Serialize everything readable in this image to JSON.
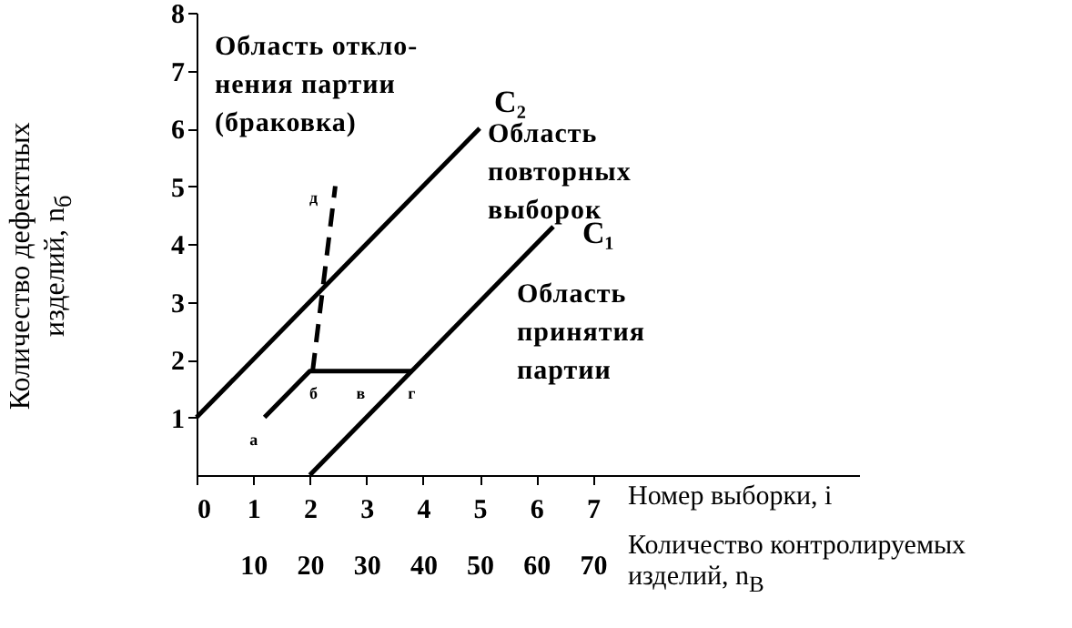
{
  "chart_data": {
    "type": "line",
    "xlabel": "Номер выборки, i",
    "x2label": "Количество контролируемых изделий, n$_{В}$",
    "ylabel": "Количество дефектных изделий, n$_{б}$",
    "xlim": [
      0,
      11.7
    ],
    "xticks": [
      0,
      1,
      2,
      3,
      4,
      5,
      6,
      7
    ],
    "ylim": [
      0,
      8
    ],
    "yticks": [
      1,
      2,
      3,
      4,
      5,
      6,
      7,
      8
    ],
    "x2lim": [
      0,
      117
    ],
    "x2ticks": [
      10,
      20,
      30,
      40,
      50,
      60,
      70
    ],
    "series": [
      {
        "name": "C₂",
        "color": "#000000",
        "x": [
          0,
          5
        ],
        "values": [
          1,
          6
        ]
      },
      {
        "name": "C₁",
        "color": "#000000",
        "x": [
          2,
          6.3
        ],
        "values": [
          0,
          4.3
        ]
      },
      {
        "color": "#000000",
        "x": [
          1.2,
          2,
          3.8
        ],
        "values": [
          1,
          1.8,
          1.8
        ]
      },
      {
        "color": "#000000",
        "line_style": "dashed",
        "x": [
          2.05,
          2.45
        ],
        "values": [
          1.8,
          5
        ]
      }
    ],
    "annotations": [
      "Область откло-нения партии (браковка)",
      "Область повторных выборок",
      "Область принятия партии",
      {
        "text": "а",
        "x": 1.2,
        "y": 1
      },
      {
        "text": "б",
        "x": 2,
        "y": 1.8
      },
      {
        "text": "в",
        "x": 2.9,
        "y": 1.8
      },
      {
        "text": "г",
        "x": 3.8,
        "y": 1.8
      },
      {
        "text": "д",
        "x": 2.45,
        "y": 5
      }
    ]
  }
}
